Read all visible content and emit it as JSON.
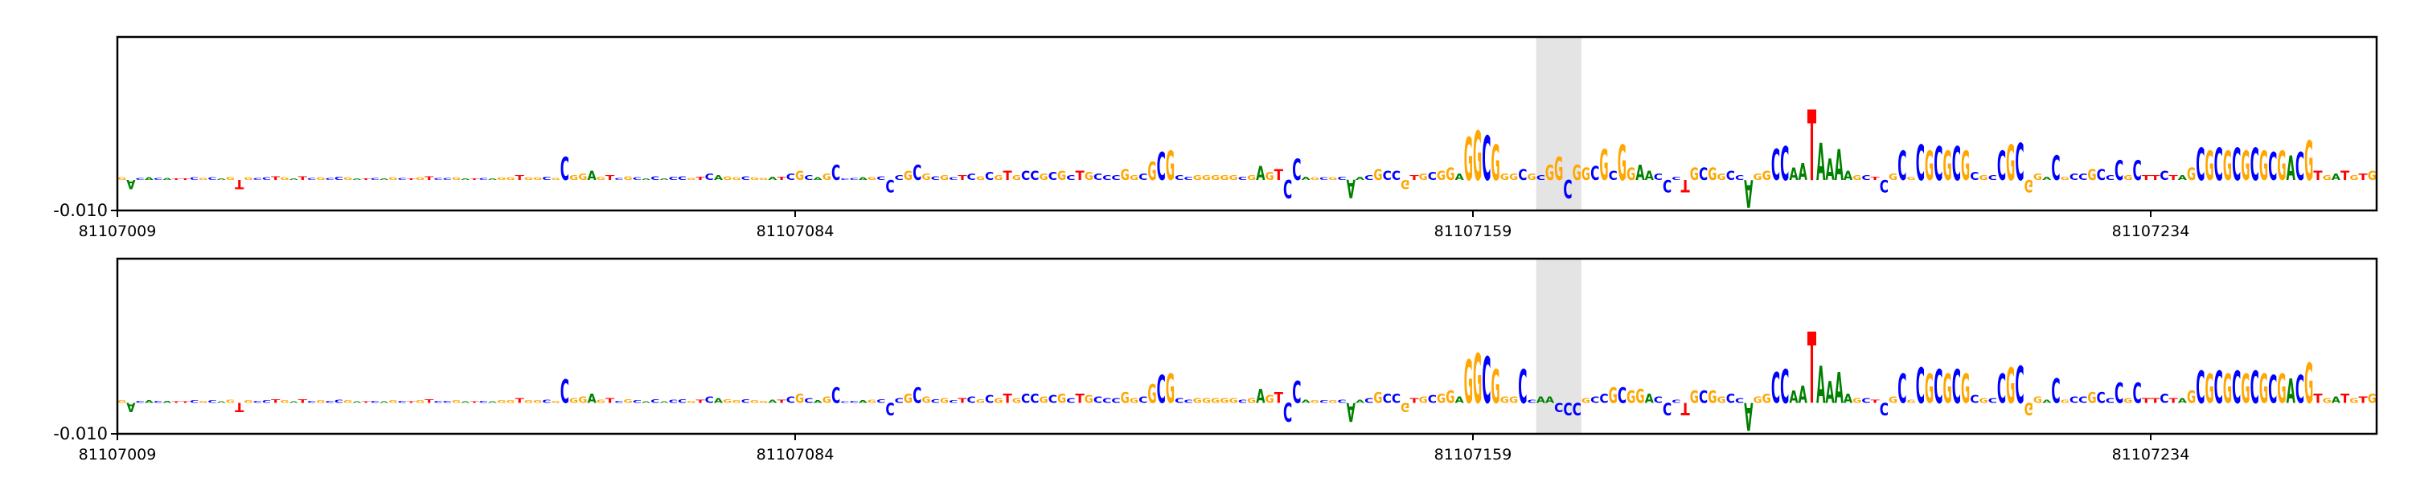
{
  "chart_data": [
    {
      "type": "logo",
      "letters": "GACACATTCGCAGTGCCTGATCGCCGATCAGCTGTCCGATCAGGTGGCGCGGAGTCGCACACCGTCAGGCGGATCGCAGCCCAGCCCGCGCGCTCGCGTGCCGCGCTGCCCGGCGCGCCGGGGGCGAGTCCAGCGCAACGCCGTGCGGAGGCGGGCGCGGCGGCGCGGAACCCTGCGGCCAGGCCAATAAAAGCTCGCGCGCGCGCGCCGCGGACGCCGCCCGCTTCTAGCGCGCGCGCGACGTGATGTG",
      "values": [
        0.0008,
        -0.003,
        0.0006,
        0.0008,
        0.0006,
        0.0006,
        0.0005,
        0.0005,
        0.0008,
        0.0006,
        0.0008,
        0.0005,
        0.001,
        -0.003,
        0.0008,
        0.0006,
        0.0008,
        0.0012,
        0.0008,
        0.0005,
        0.0012,
        0.0006,
        0.0008,
        0.0006,
        0.001,
        0.0008,
        0.0005,
        0.0005,
        0.0006,
        0.0005,
        0.0008,
        0.0006,
        0.0005,
        0.0008,
        0.0012,
        0.0006,
        0.0006,
        0.0008,
        0.0005,
        0.0005,
        0.0006,
        0.0005,
        0.0008,
        0.0008,
        0.0015,
        0.0008,
        0.0008,
        0.001,
        0.0006,
        0.0075,
        0.0015,
        0.002,
        0.003,
        0.001,
        0.0015,
        0.0006,
        0.0012,
        0.0008,
        0.0005,
        0.0012,
        0.0005,
        0.001,
        0.0012,
        0.0006,
        0.001,
        0.002,
        0.0015,
        0.0012,
        0.0008,
        0.0012,
        0.0008,
        0.0006,
        0.001,
        0.001,
        0.002,
        0.003,
        0.0015,
        0.0008,
        0.002,
        0.005,
        0.0005,
        0.0006,
        0.0008,
        0.001,
        0.0012,
        -0.004,
        0.0015,
        0.003,
        0.005,
        0.002,
        0.0012,
        0.0015,
        0.0008,
        0.0015,
        0.002,
        0.0012,
        0.0025,
        0.0015,
        0.003,
        0.0015,
        0.003,
        0.003,
        0.002,
        0.0025,
        0.003,
        0.0015,
        0.003,
        0.0025,
        0.002,
        0.0015,
        0.0015,
        0.0035,
        0.0015,
        0.002,
        0.006,
        0.009,
        0.0095,
        0.0015,
        0.001,
        0.0015,
        0.0015,
        0.0015,
        0.0015,
        0.0015,
        0.001,
        0.0015,
        0.0045,
        0.0025,
        0.0035,
        -0.006,
        0.007,
        0.001,
        0.0008,
        0.0008,
        0.0008,
        0.001,
        -0.006,
        0.001,
        0.0015,
        0.0035,
        0.003,
        0.003,
        -0.003,
        0.0015,
        0.002,
        0.0025,
        0.003,
        0.004,
        0.002,
        0.014,
        0.016,
        0.0145,
        0.0115,
        0.002,
        0.002,
        0.0035,
        0.002,
        0.0015,
        0.005,
        0.0075,
        -0.006,
        0.005,
        0.004,
        0.0045,
        0.01,
        0.003,
        0.0115,
        0.004,
        0.005,
        0.003,
        0.002,
        -0.004,
        0.001,
        -0.004,
        0.004,
        0.004,
        0.004,
        0.002,
        0.003,
        0.0015,
        -0.009,
        0.002,
        0.003,
        0.01,
        0.011,
        0.004,
        0.0055,
        0.023,
        0.012,
        0.007,
        0.01,
        0.003,
        0.0015,
        0.0015,
        0.001,
        -0.004,
        0.002,
        0.0095,
        0.001,
        0.0115,
        0.0095,
        0.011,
        0.0095,
        0.011,
        0.0095,
        0.0025,
        0.0015,
        0.0015,
        0.0095,
        0.0115,
        0.012,
        -0.004,
        0.002,
        0.001,
        0.008,
        0.001,
        0.002,
        0.002,
        0.0035,
        0.0035,
        0.0015,
        0.0065,
        0.0015,
        0.0065,
        0.0015,
        0.0015,
        0.003,
        0.0015,
        0.0015,
        0.004,
        0.0105,
        0.0095,
        0.0105,
        0.0095,
        0.0105,
        0.0095,
        0.0105,
        0.0095,
        0.009,
        0.0095,
        0.008,
        0.009,
        0.013,
        0.003,
        0.0015,
        0.002,
        0.003,
        0.0015,
        0.002,
        0.003
      ],
      "start": 81107009,
      "xlim": [
        81107009,
        81107259
      ],
      "xticks": [
        81107009,
        81107084,
        81107159,
        81107234
      ],
      "ylim": [
        -0.01,
        0.0465
      ],
      "yticks": [
        {
          "value": -0.01,
          "label": "-0.010"
        }
      ],
      "highlight": [
        81107166,
        81107171
      ],
      "colors": {
        "A": "#008000",
        "C": "#0000ff",
        "G": "#ffa600",
        "T": "#ff0000"
      }
    },
    {
      "type": "logo",
      "letters": "GACACATTCGCAGTGCCTGATCGCCGATCAGCTGTCCGATCAGGTGGCGCGGAGTCGCACACCGTCAGGCGGATCGCAGCCCAGCCCGCGCGCTCGCGTGCCGCGCTGCCCGGCGCGCCGGGGGCGAGTCCAGCGCAACGCCGTGCGGAGGCGGGCCAACCCGCCGCGGACCCTGCGGCCAGGCCAATAAAAGCTCGCGCGCGCGCGCCGCGGACGCCGCCCGCTTCTAGCGCGCGCGCGACGTGATGTG",
      "values": [
        0.0008,
        -0.003,
        0.0006,
        0.0008,
        0.0006,
        0.0006,
        0.0005,
        0.0005,
        0.0008,
        0.0006,
        0.0008,
        0.0005,
        0.001,
        -0.003,
        0.0008,
        0.0006,
        0.0008,
        0.0012,
        0.0008,
        0.0005,
        0.0012,
        0.0006,
        0.0008,
        0.0006,
        0.001,
        0.0008,
        0.0005,
        0.0005,
        0.0006,
        0.0005,
        0.0008,
        0.0006,
        0.0005,
        0.0008,
        0.0012,
        0.0006,
        0.0006,
        0.0008,
        0.0005,
        0.0005,
        0.0006,
        0.0005,
        0.0008,
        0.0008,
        0.0015,
        0.0008,
        0.0008,
        0.001,
        0.0006,
        0.0075,
        0.0015,
        0.002,
        0.003,
        0.001,
        0.0015,
        0.0006,
        0.0012,
        0.0008,
        0.0005,
        0.0012,
        0.0005,
        0.001,
        0.0012,
        0.0006,
        0.001,
        0.002,
        0.0015,
        0.0012,
        0.0008,
        0.0012,
        0.0008,
        0.0006,
        0.001,
        0.001,
        0.002,
        0.003,
        0.0015,
        0.0008,
        0.002,
        0.005,
        0.0005,
        0.0006,
        0.0008,
        0.001,
        0.0012,
        -0.004,
        0.0015,
        0.003,
        0.005,
        0.002,
        0.0012,
        0.0015,
        0.0008,
        0.0015,
        0.002,
        0.0012,
        0.0025,
        0.0015,
        0.003,
        0.0015,
        0.003,
        0.003,
        0.002,
        0.0025,
        0.003,
        0.0015,
        0.003,
        0.0025,
        0.002,
        0.0015,
        0.0015,
        0.0035,
        0.0015,
        0.002,
        0.006,
        0.009,
        0.0095,
        0.0015,
        0.001,
        0.0015,
        0.0015,
        0.0015,
        0.0015,
        0.0015,
        0.001,
        0.0015,
        0.0045,
        0.0025,
        0.0035,
        -0.006,
        0.007,
        0.001,
        0.0008,
        0.0008,
        0.0008,
        0.001,
        -0.006,
        0.001,
        0.0015,
        0.0035,
        0.003,
        0.003,
        -0.003,
        0.0015,
        0.002,
        0.0025,
        0.003,
        0.004,
        0.002,
        0.014,
        0.016,
        0.015,
        0.011,
        0.002,
        0.002,
        0.011,
        0.001,
        0.002,
        0.002,
        -0.003,
        -0.004,
        -0.004,
        0.0015,
        0.002,
        0.003,
        0.005,
        0.005,
        0.004,
        0.0045,
        0.003,
        0.002,
        -0.004,
        0.001,
        -0.004,
        0.004,
        0.004,
        0.004,
        0.002,
        0.003,
        0.0015,
        -0.009,
        0.002,
        0.003,
        0.01,
        0.011,
        0.004,
        0.0055,
        0.023,
        0.012,
        0.007,
        0.01,
        0.003,
        0.0015,
        0.0015,
        0.001,
        -0.004,
        0.002,
        0.0095,
        0.001,
        0.0115,
        0.0095,
        0.011,
        0.0095,
        0.011,
        0.0095,
        0.0025,
        0.0015,
        0.0015,
        0.0095,
        0.0115,
        0.012,
        -0.004,
        0.002,
        0.001,
        0.008,
        0.001,
        0.002,
        0.002,
        0.0035,
        0.0035,
        0.0015,
        0.0065,
        0.0015,
        0.0065,
        0.0015,
        0.0015,
        0.003,
        0.0015,
        0.0015,
        0.004,
        0.0105,
        0.0095,
        0.0105,
        0.0095,
        0.0105,
        0.0095,
        0.0105,
        0.0095,
        0.009,
        0.0095,
        0.008,
        0.009,
        0.013,
        0.003,
        0.0015,
        0.002,
        0.003,
        0.0015,
        0.002,
        0.003
      ],
      "start": 81107009,
      "xlim": [
        81107009,
        81107259
      ],
      "xticks": [
        81107009,
        81107084,
        81107159,
        81107234
      ],
      "ylim": [
        -0.01,
        0.0465
      ],
      "yticks": [
        {
          "value": -0.01,
          "label": "-0.010"
        }
      ],
      "highlight": [
        81107166,
        81107171
      ],
      "colors": {
        "A": "#008000",
        "C": "#0000ff",
        "G": "#ffa600",
        "T": "#ff0000"
      }
    }
  ]
}
